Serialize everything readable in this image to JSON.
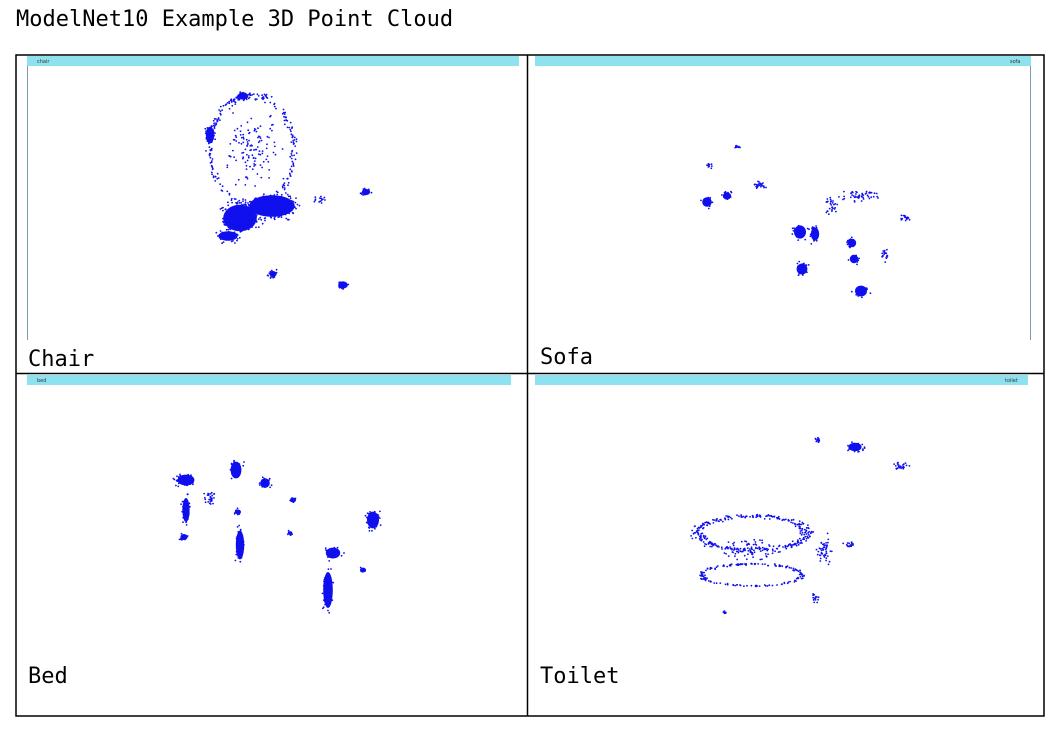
{
  "header": {
    "title": "ModelNet10 Example 3D Point Cloud"
  },
  "panels": [
    {
      "label": "Chair",
      "window_title": "chair"
    },
    {
      "label": "Sofa",
      "window_title": "sofa"
    },
    {
      "label": "Bed",
      "window_title": "bed"
    },
    {
      "label": "Toilet",
      "window_title": "toilet"
    }
  ]
}
